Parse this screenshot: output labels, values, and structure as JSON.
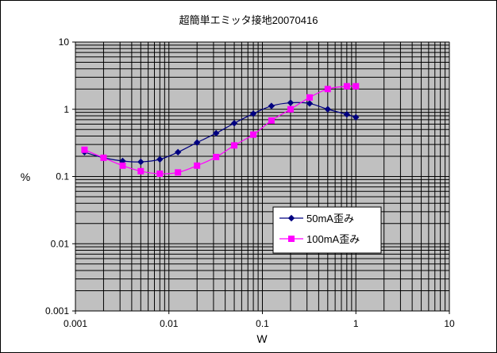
{
  "chart_data": {
    "type": "line",
    "title": "超簡単エミッタ接地20070416",
    "xlabel": "W",
    "ylabel": "%",
    "x_scale": "log",
    "y_scale": "log",
    "xlim": [
      0.001,
      10
    ],
    "ylim": [
      0.001,
      10
    ],
    "x_ticks": [
      "0.001",
      "0.01",
      "0.1",
      "1",
      "10"
    ],
    "y_ticks": [
      "0.001",
      "0.01",
      "0.1",
      "1",
      "10"
    ],
    "grid": true,
    "plot_background": "#c0c0c0",
    "legend_position": "inside-lower-right",
    "series": [
      {
        "name": "50mA歪み",
        "color": "#000080",
        "marker": "diamond",
        "points": [
          [
            0.00125,
            0.23
          ],
          [
            0.002,
            0.19
          ],
          [
            0.0032,
            0.17
          ],
          [
            0.005,
            0.165
          ],
          [
            0.008,
            0.18
          ],
          [
            0.0125,
            0.23
          ],
          [
            0.02,
            0.32
          ],
          [
            0.032,
            0.44
          ],
          [
            0.05,
            0.62
          ],
          [
            0.08,
            0.86
          ],
          [
            0.125,
            1.12
          ],
          [
            0.2,
            1.25
          ],
          [
            0.32,
            1.22
          ],
          [
            0.5,
            1.0
          ],
          [
            0.8,
            0.84
          ],
          [
            1.0,
            0.76
          ]
        ]
      },
      {
        "name": "100mA歪み",
        "color": "#ff00ff",
        "marker": "square",
        "points": [
          [
            0.00125,
            0.25
          ],
          [
            0.002,
            0.19
          ],
          [
            0.0032,
            0.145
          ],
          [
            0.005,
            0.12
          ],
          [
            0.008,
            0.11
          ],
          [
            0.0125,
            0.115
          ],
          [
            0.02,
            0.145
          ],
          [
            0.032,
            0.195
          ],
          [
            0.05,
            0.29
          ],
          [
            0.08,
            0.42
          ],
          [
            0.125,
            0.68
          ],
          [
            0.2,
            1.0
          ],
          [
            0.32,
            1.5
          ],
          [
            0.5,
            2.0
          ],
          [
            0.8,
            2.2
          ],
          [
            1.0,
            2.2
          ]
        ]
      }
    ]
  }
}
